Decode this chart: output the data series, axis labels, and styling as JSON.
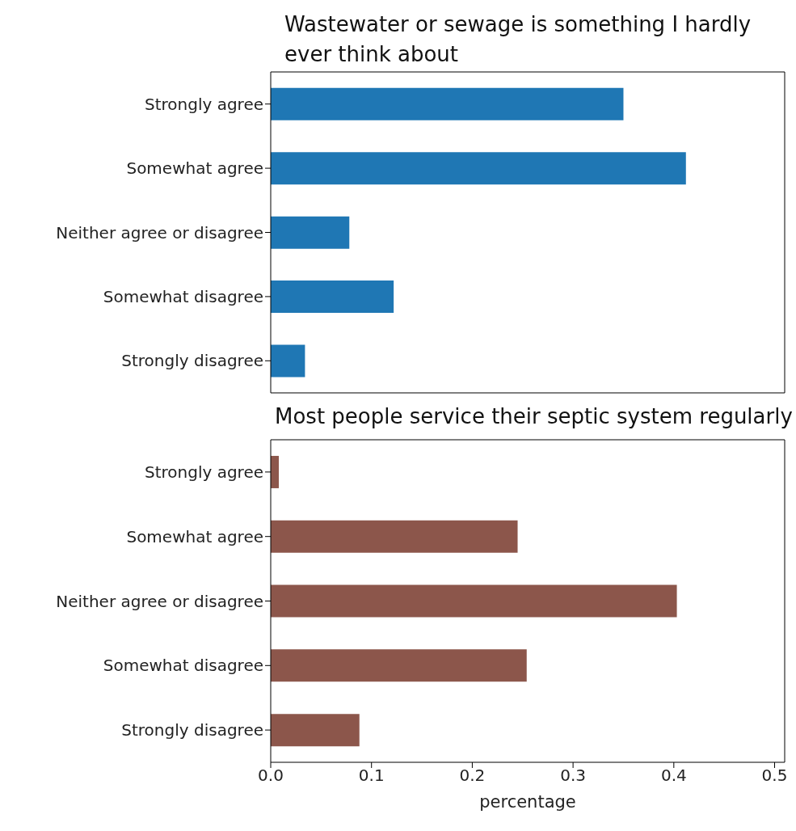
{
  "chart_data": [
    {
      "type": "bar",
      "orientation": "horizontal",
      "title": "Wastewater or sewage is something I hardly ever think about",
      "categories": [
        "Strongly agree",
        "Somewhat agree",
        "Neither agree or disagree",
        "Somewhat disagree",
        "Strongly disagree"
      ],
      "values": [
        0.35,
        0.412,
        0.078,
        0.122,
        0.034
      ],
      "color": "#1f77b4",
      "xlim": [
        0,
        0.51
      ],
      "xticks": [
        {
          "value": 0,
          "label": null
        },
        {
          "value": 0.1,
          "label": null
        },
        {
          "value": 0.2,
          "label": null
        },
        {
          "value": 0.3,
          "label": null
        },
        {
          "value": 0.4,
          "label": null
        },
        {
          "value": 0.5,
          "label": null
        }
      ],
      "tick_labels": "y"
    },
    {
      "type": "bar",
      "orientation": "horizontal",
      "title": "Most people service their septic system regularly",
      "xlabel": "percentage",
      "categories": [
        "Strongly agree",
        "Somewhat agree",
        "Neither agree or disagree",
        "Somewhat disagree",
        "Strongly disagree"
      ],
      "values": [
        0.008,
        0.245,
        0.403,
        0.254,
        0.088
      ],
      "color": "#8c564b",
      "xlim": [
        0,
        0.51
      ],
      "xticks": [
        {
          "value": 0,
          "label": "0.0"
        },
        {
          "value": 0.1,
          "label": "0.1"
        },
        {
          "value": 0.2,
          "label": "0.2"
        },
        {
          "value": 0.3,
          "label": "0.3"
        },
        {
          "value": 0.4,
          "label": "0.4"
        },
        {
          "value": 0.5,
          "label": "0.5"
        }
      ]
    }
  ]
}
